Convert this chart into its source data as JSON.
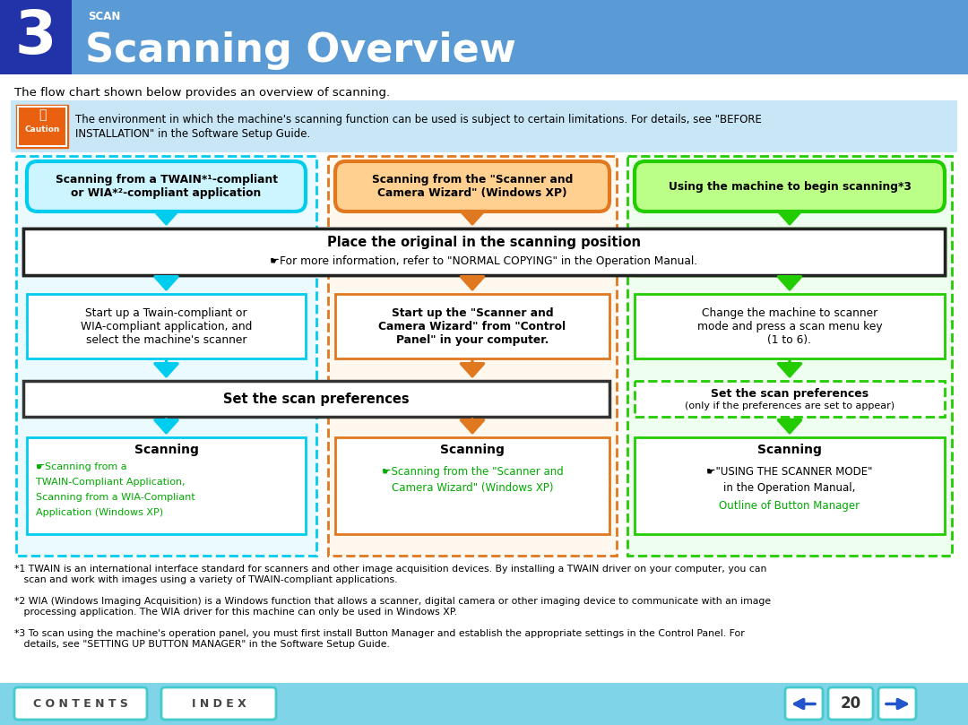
{
  "title_number": "3",
  "title_scan": "SCAN",
  "title_main": "Scanning Overview",
  "subtitle": "The flow chart shown below provides an overview of scanning.",
  "caution_text1": "The environment in which the machine's scanning function can be used is subject to certain limitations. For details, see \"BEFORE",
  "caution_text2": "INSTALLATION\" in the Software Setup Guide.",
  "header_bg": "#5b9bd5",
  "header_dark_bg": "#2233aa",
  "body_bg": "#ffffff",
  "caution_bg": "#c8e6f5",
  "footer_bg": "#7fd4e8",
  "col1_border": "#00ccee",
  "col2_border": "#e07820",
  "col3_border": "#22cc00",
  "box_top1_text": "Scanning from a TWAIN*¹-compliant\nor WIA*²-compliant application",
  "box_top2_text": "Scanning from the \"Scanner and\nCamera Wizard\" (Windows XP)",
  "box_top3_text": "Using the machine to begin scanning*3",
  "box_place_text": "Place the original in the scanning position",
  "box_place_sub": "☛For more information, refer to \"NORMAL COPYING\" in the Operation Manual.",
  "box_mid1_text": "Start up a Twain-compliant or\nWIA-compliant application, and\nselect the machine's scanner",
  "box_mid2_text": "Start up the \"Scanner and\nCamera Wizard\" from \"Control\nPanel\" in your computer.",
  "box_mid3_text": "Change the machine to scanner\nmode and press a scan menu key\n(1 to 6).",
  "box_pref1_text": "Set the scan preferences",
  "box_pref2_line1": "Set the scan preferences",
  "box_pref2_line2": "(only if the preferences are set to appear)",
  "box_scan1_title": "Scanning",
  "box_scan1_link1": "☛Scanning from a",
  "box_scan1_link2": "TWAIN-Compliant Application,",
  "box_scan1_link3": "Scanning from a WIA-Compliant",
  "box_scan1_link4": "Application (Windows XP)",
  "box_scan2_title": "Scanning",
  "box_scan2_link1": "☛Scanning from the \"Scanner and",
  "box_scan2_link2": "Camera Wizard\" (Windows XP)",
  "box_scan3_title": "Scanning",
  "box_scan3_text1": "☛\"USING THE SCANNER MODE\"",
  "box_scan3_text2": "in the Operation Manual,",
  "box_scan3_link": "Outline of Button Manager",
  "fn1_a": "*1 TWAIN is an international interface standard for scanners and other image acquisition devices. By installing a TWAIN driver on your computer, you can",
  "fn1_b": "   scan and work with images using a variety of TWAIN-compliant applications.",
  "fn2_a": "*2 WIA (Windows Imaging Acquisition) is a Windows function that allows a scanner, digital camera or other imaging device to communicate with an image",
  "fn2_b": "   processing application. The WIA driver for this machine can only be used in Windows XP.",
  "fn3_a": "*3 To scan using the machine's operation panel, you must first install Button Manager and establish the appropriate settings in the Control Panel. For",
  "fn3_b": "   details, see \"SETTING UP BUTTON MANAGER\" in the Software Setup Guide.",
  "btn_contents": "C O N T E N T S",
  "btn_index": "I N D E X",
  "page_num": "20"
}
